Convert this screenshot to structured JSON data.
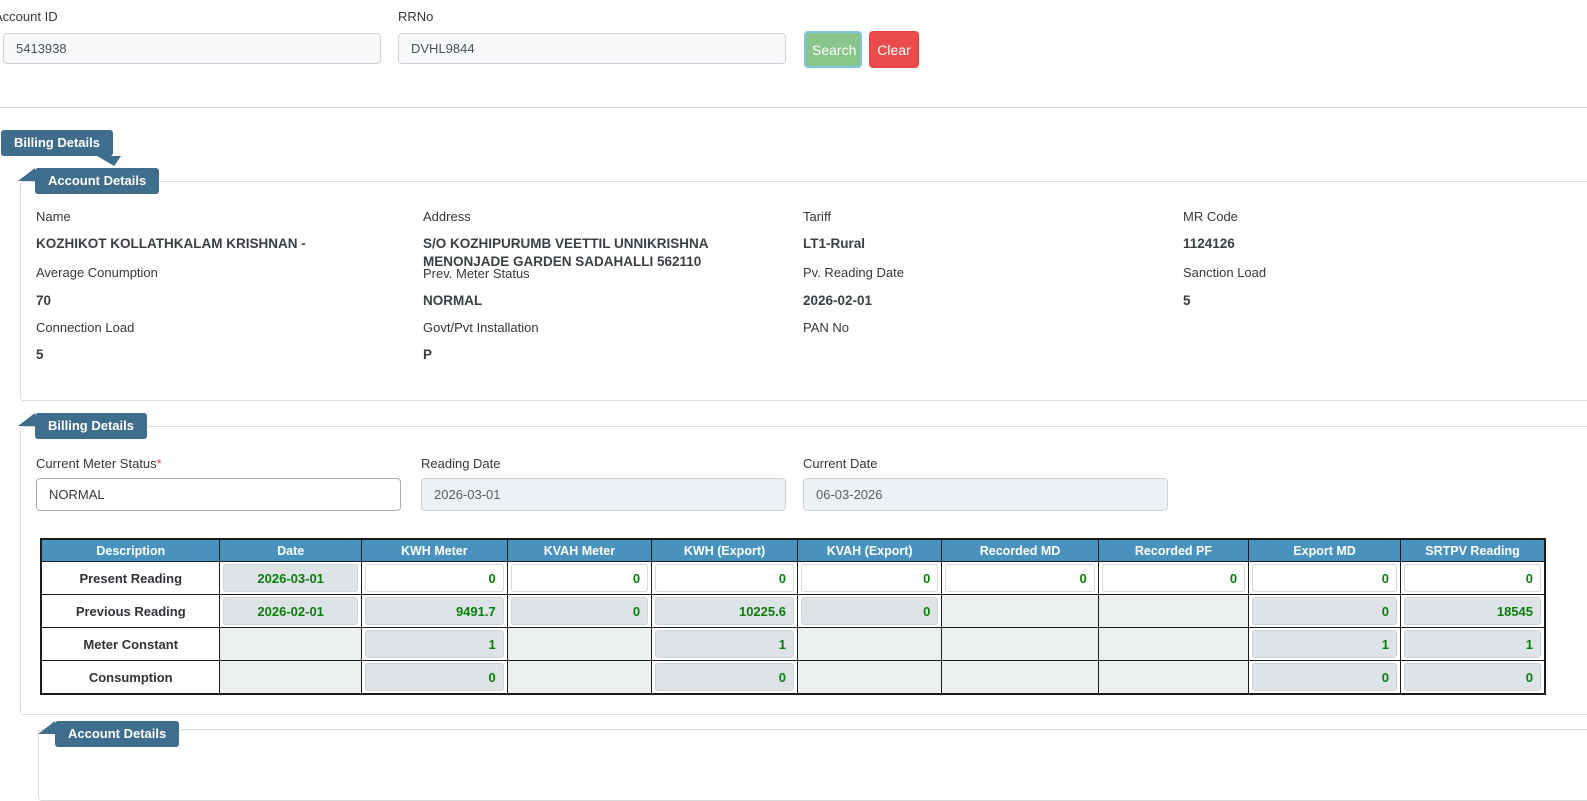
{
  "colors": {
    "ribbon": "#3f6d8c",
    "table_header": "#4a92be",
    "value_green": "#0a7d0a",
    "search_button": "#89c489",
    "clear_button": "#ea4b4c"
  },
  "search_bar": {
    "account_id_label": "Account ID",
    "account_id_value": "5413938",
    "rrno_label": "RRNo",
    "rrno_value": "DVHL9844",
    "search_button": "Search",
    "clear_button": "Clear"
  },
  "ribbons": {
    "top": "Billing Details",
    "account_details": "Account Details",
    "billing_details": "Billing Details",
    "bottom_account_details": "Account Details"
  },
  "account_details": {
    "fields": [
      {
        "label": "Name",
        "value": "KOZHIKOT KOLLATHKALAM KRISHNAN -"
      },
      {
        "label": "Address",
        "value": "S/O KOZHIPURUMB VEETTIL UNNIKRISHNA MENONJADE GARDEN SADAHALLI 562110"
      },
      {
        "label": "Tariff",
        "value": "LT1-Rural"
      },
      {
        "label": "MR Code",
        "value": "1124126"
      },
      {
        "label": "Average Conumption",
        "value": "70"
      },
      {
        "label": "Prev. Meter Status",
        "value": "NORMAL"
      },
      {
        "label": "Pv. Reading Date",
        "value": "2026-02-01"
      },
      {
        "label": "Sanction Load",
        "value": "5"
      },
      {
        "label": "Connection Load",
        "value": "5"
      },
      {
        "label": "Govt/Pvt Installation",
        "value": "P"
      },
      {
        "label": "PAN No",
        "value": ""
      }
    ]
  },
  "billing_form": {
    "current_meter_status_label": "Current Meter Status",
    "required_mark": "*",
    "current_meter_status_value": "NORMAL",
    "reading_date_label": "Reading Date",
    "reading_date_value": "2026-03-01",
    "current_date_label": "Current Date",
    "current_date_value": "06-03-2026"
  },
  "meter_table": {
    "columns": [
      "Description",
      "Date",
      "KWH Meter",
      "KVAH Meter",
      "KWH (Export)",
      "KVAH (Export)",
      "Recorded MD",
      "Recorded PF",
      "Export MD",
      "SRTPV Reading"
    ],
    "rows": [
      {
        "label": "Present Reading",
        "cells": [
          {
            "v": "2026-03-01",
            "t": "ro"
          },
          {
            "v": "0",
            "t": "input"
          },
          {
            "v": "0",
            "t": "input"
          },
          {
            "v": "0",
            "t": "input"
          },
          {
            "v": "0",
            "t": "input"
          },
          {
            "v": "0",
            "t": "input"
          },
          {
            "v": "0",
            "t": "input"
          },
          {
            "v": "0",
            "t": "input"
          },
          {
            "v": "0",
            "t": "input"
          }
        ]
      },
      {
        "label": "Previous Reading",
        "cells": [
          {
            "v": "2026-02-01",
            "t": "ro"
          },
          {
            "v": "9491.7",
            "t": "ro"
          },
          {
            "v": "0",
            "t": "ro"
          },
          {
            "v": "10225.6",
            "t": "ro"
          },
          {
            "v": "0",
            "t": "ro"
          },
          {
            "v": "",
            "t": "empty"
          },
          {
            "v": "",
            "t": "empty"
          },
          {
            "v": "0",
            "t": "ro"
          },
          {
            "v": "18545",
            "t": "ro"
          }
        ]
      },
      {
        "label": "Meter Constant",
        "cells": [
          {
            "v": "",
            "t": "empty"
          },
          {
            "v": "1",
            "t": "ro"
          },
          {
            "v": "",
            "t": "empty"
          },
          {
            "v": "1",
            "t": "ro"
          },
          {
            "v": "",
            "t": "empty"
          },
          {
            "v": "",
            "t": "empty"
          },
          {
            "v": "",
            "t": "empty"
          },
          {
            "v": "1",
            "t": "ro"
          },
          {
            "v": "1",
            "t": "ro"
          }
        ]
      },
      {
        "label": "Consumption",
        "cells": [
          {
            "v": "",
            "t": "empty"
          },
          {
            "v": "0",
            "t": "ro"
          },
          {
            "v": "",
            "t": "empty"
          },
          {
            "v": "0",
            "t": "ro"
          },
          {
            "v": "",
            "t": "empty"
          },
          {
            "v": "",
            "t": "empty"
          },
          {
            "v": "",
            "t": "empty"
          },
          {
            "v": "0",
            "t": "ro"
          },
          {
            "v": "0",
            "t": "ro"
          }
        ]
      }
    ]
  }
}
